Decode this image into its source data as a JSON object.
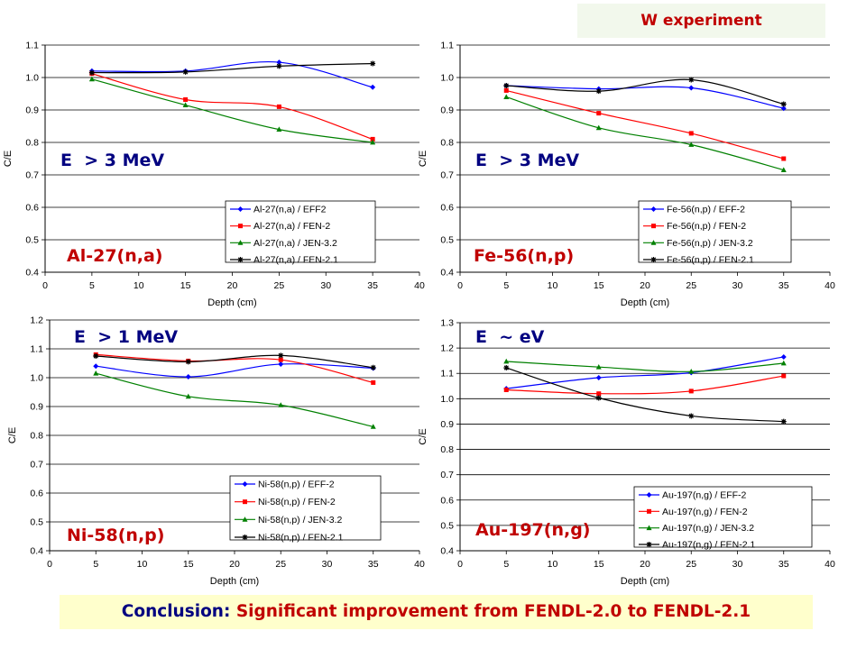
{
  "header": {
    "label": "W experiment"
  },
  "conclusion": {
    "lead": "Conclusion:",
    "text": "Significant improvement from FENDL-2.0 to FENDL-2.1"
  },
  "colors": {
    "EFF2": "#0000ff",
    "FEN20": "#ff0000",
    "JEN": "#008000",
    "FEN21": "#000000",
    "title": "#c00000",
    "energy": "#000080"
  },
  "chart_data": [
    {
      "type": "line",
      "reaction_label": "Al-27(n,a)",
      "energy_label": "E  > 3 MeV",
      "xlabel": "Depth (cm)",
      "ylabel": "C/E",
      "xlim": [
        0,
        40
      ],
      "ylim": [
        0.4,
        1.1
      ],
      "ystep": 0.1,
      "x_ticks": [
        "0",
        "5",
        "10",
        "15",
        "20",
        "25",
        "30",
        "35",
        "40"
      ],
      "y_ticks": [
        "0.4",
        "0.5",
        "0.6",
        "0.7",
        "0.8",
        "0.9",
        "1.0",
        "1.1"
      ],
      "x": [
        5,
        15,
        25,
        35
      ],
      "grid": "horizontal",
      "legend_position": "bottom-right",
      "series": [
        {
          "name": "Al-27(n,a) / EFF2",
          "values": [
            1.02,
            1.02,
            1.047,
            0.97
          ]
        },
        {
          "name": "Al-27(n,a) / FEN-2",
          "values": [
            1.012,
            0.932,
            0.91,
            0.81
          ]
        },
        {
          "name": "Al-27(n,a) / JEN-3.2",
          "values": [
            0.995,
            0.915,
            0.84,
            0.8
          ]
        },
        {
          "name": "Al-27(n,a) / FEN-2.1",
          "values": [
            1.015,
            1.017,
            1.035,
            1.043
          ]
        }
      ]
    },
    {
      "type": "line",
      "reaction_label": "Fe-56(n,p)",
      "energy_label": "E  > 3 MeV",
      "xlabel": "Depth (cm)",
      "ylabel": "C/E",
      "xlim": [
        0,
        40
      ],
      "ylim": [
        0.4,
        1.1
      ],
      "ystep": 0.1,
      "x_ticks": [
        "0",
        "5",
        "10",
        "15",
        "20",
        "25",
        "30",
        "35",
        "40"
      ],
      "y_ticks": [
        "0.4",
        "0.5",
        "0.6",
        "0.7",
        "0.8",
        "0.9",
        "1.0",
        "1.1"
      ],
      "x": [
        5,
        15,
        25,
        35
      ],
      "grid": "horizontal",
      "legend_position": "bottom-right",
      "series": [
        {
          "name": "Fe-56(n,p) / EFF-2",
          "values": [
            0.975,
            0.965,
            0.968,
            0.905
          ]
        },
        {
          "name": "Fe-56(n,p) / FEN-2",
          "values": [
            0.96,
            0.89,
            0.828,
            0.75
          ]
        },
        {
          "name": "Fe-56(n,p) / JEN-3.2",
          "values": [
            0.94,
            0.845,
            0.793,
            0.715
          ]
        },
        {
          "name": "Fe-56(n,p) / FEN-2.1",
          "values": [
            0.975,
            0.958,
            0.993,
            0.918
          ]
        }
      ]
    },
    {
      "type": "line",
      "reaction_label": "Ni-58(n,p)",
      "energy_label": "E  > 1 MeV",
      "xlabel": "Depth (cm)",
      "ylabel": "C/E",
      "xlim": [
        0,
        40
      ],
      "ylim": [
        0.4,
        1.2
      ],
      "ystep": 0.1,
      "x_ticks": [
        "0",
        "5",
        "10",
        "15",
        "20",
        "25",
        "30",
        "35",
        "40"
      ],
      "y_ticks": [
        "0.4",
        "0.5",
        "0.6",
        "0.7",
        "0.8",
        "0.9",
        "1.0",
        "1.1",
        "1.2"
      ],
      "x": [
        5,
        15,
        25,
        35
      ],
      "grid": "horizontal",
      "legend_position": "bottom-right",
      "series": [
        {
          "name": "Ni-58(n,p) / EFF-2",
          "values": [
            1.04,
            1.003,
            1.047,
            1.033
          ]
        },
        {
          "name": "Ni-58(n,p) / FEN-2",
          "values": [
            1.08,
            1.058,
            1.062,
            0.983
          ]
        },
        {
          "name": "Ni-58(n,p) / JEN-3.2",
          "values": [
            1.015,
            0.935,
            0.905,
            0.83
          ]
        },
        {
          "name": "Ni-58(n,p) / FEN-2.1",
          "values": [
            1.075,
            1.055,
            1.077,
            1.035
          ]
        }
      ]
    },
    {
      "type": "line",
      "reaction_label": "Au-197(n,g)",
      "energy_label": "E  ~ eV",
      "xlabel": "Depth (cm)",
      "ylabel": "C/E",
      "xlim": [
        0,
        40
      ],
      "ylim": [
        0.4,
        1.3
      ],
      "ystep": 0.1,
      "x_ticks": [
        "0",
        "5",
        "10",
        "15",
        "20",
        "25",
        "30",
        "35",
        "40"
      ],
      "y_ticks": [
        "0.4",
        "0.5",
        "0.6",
        "0.7",
        "0.8",
        "0.9",
        "1.0",
        "1.1",
        "1.2",
        "1.3"
      ],
      "x": [
        5,
        15,
        25,
        35
      ],
      "grid": "horizontal",
      "legend_position": "bottom-right",
      "series": [
        {
          "name": "Au-197(n,g) / EFF-2",
          "values": [
            1.04,
            1.083,
            1.103,
            1.165
          ]
        },
        {
          "name": "Au-197(n,g) / FEN-2",
          "values": [
            1.035,
            1.02,
            1.03,
            1.09
          ]
        },
        {
          "name": "Au-197(n,g) / JEN-3.2",
          "values": [
            1.147,
            1.125,
            1.107,
            1.14
          ]
        },
        {
          "name": "Au-197(n,g) / FEN-2.1",
          "values": [
            1.122,
            1.003,
            0.932,
            0.91
          ]
        }
      ]
    }
  ]
}
